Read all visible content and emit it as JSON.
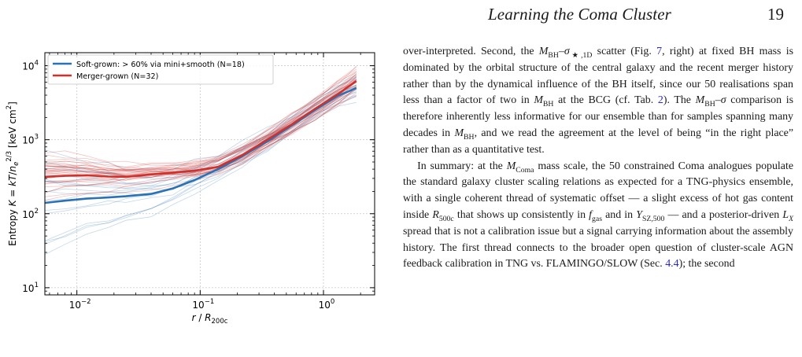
{
  "header": {
    "running_title": "Learning the Coma Cluster",
    "page_number": "19"
  },
  "figure": {
    "chart_data": {
      "type": "line",
      "xscale": "log",
      "yscale": "log",
      "xlim": [
        0.0055,
        2.6
      ],
      "ylim": [
        8,
        15000
      ],
      "xlabel": "r / R200c",
      "ylabel": "Entropy K = kT/n_e^(2/3) [keV cm^2]",
      "xticks": [
        "10^-2",
        "10^-1",
        "10^0"
      ],
      "yticks": [
        "10^1",
        "10^2",
        "10^3",
        "10^4"
      ],
      "legend_position": "top-left",
      "grid": true,
      "series": [
        {
          "name": "Soft-grown: > 60% via mini+smooth (N=18)",
          "color": "#2a72b5",
          "x": [
            0.0055,
            0.008,
            0.012,
            0.018,
            0.025,
            0.04,
            0.06,
            0.09,
            0.14,
            0.22,
            0.35,
            0.55,
            0.85,
            1.3,
            1.85
          ],
          "y": [
            140,
            150,
            160,
            166,
            172,
            185,
            220,
            285,
            400,
            600,
            950,
            1550,
            2500,
            3900,
            5000
          ]
        },
        {
          "name": "Merger-grown (N=32)",
          "color": "#d1302b",
          "x": [
            0.0055,
            0.008,
            0.012,
            0.018,
            0.025,
            0.04,
            0.06,
            0.09,
            0.14,
            0.22,
            0.35,
            0.55,
            0.85,
            1.3,
            1.85
          ],
          "y": [
            315,
            325,
            330,
            318,
            315,
            340,
            360,
            380,
            430,
            620,
            1000,
            1600,
            2600,
            4100,
            6200
          ]
        }
      ]
    }
  },
  "text": {
    "p1": [
      {
        "t": "over-interpreted. Second, the "
      },
      {
        "t": "M",
        "i": true
      },
      {
        "t": "BH",
        "sub": true
      },
      {
        "t": "–"
      },
      {
        "t": "σ",
        "i": true
      },
      {
        "t": "★,1D",
        "sub": true
      },
      {
        "t": " scatter (Fig. "
      },
      {
        "t": "7",
        "link": true
      },
      {
        "t": ", right) at fixed BH mass is dominated by the orbital structure of the central galaxy and the recent merger history rather than by the dynamical influence of the BH itself, since our 50 realisations span less than a factor of two in "
      },
      {
        "t": "M",
        "i": true
      },
      {
        "t": "BH",
        "sub": true
      },
      {
        "t": " at the BCG (cf. Tab. "
      },
      {
        "t": "2",
        "link": true
      },
      {
        "t": "). The "
      },
      {
        "t": "M",
        "i": true
      },
      {
        "t": "BH",
        "sub": true
      },
      {
        "t": "–"
      },
      {
        "t": "σ",
        "i": true
      },
      {
        "t": " comparison is therefore inherently less informative for our ensemble than for samples spanning many decades in "
      },
      {
        "t": "M",
        "i": true
      },
      {
        "t": "BH",
        "sub": true
      },
      {
        "t": ", and we read the agreement at the level of being “in the right place” rather than as a quantitative test."
      }
    ],
    "p2": [
      {
        "t": "In summary: at the "
      },
      {
        "t": "M",
        "i": true
      },
      {
        "t": "Coma",
        "sub": true
      },
      {
        "t": " mass scale, the 50 constrained Coma analogues populate the standard galaxy cluster scaling relations as expected for a TNG-physics ensemble, with a single coherent thread of systematic offset — a slight excess of hot gas content inside "
      },
      {
        "t": "R",
        "i": true
      },
      {
        "t": "500c",
        "sub": true
      },
      {
        "t": " that shows up consistently in "
      },
      {
        "t": "f",
        "i": true
      },
      {
        "t": "gas",
        "sub": true
      },
      {
        "t": " and in "
      },
      {
        "t": "Y",
        "i": true
      },
      {
        "t": "SZ,500",
        "sub": true
      },
      {
        "t": " — and a posterior-driven "
      },
      {
        "t": "L",
        "i": true
      },
      {
        "t": "X",
        "sub": true,
        "i": true
      },
      {
        "t": " spread that is not a calibration issue but a signal carrying information about the assembly history. The first thread connects to the broader open question of cluster-scale AGN feedback calibration in TNG vs. FLAMINGO/SLOW (Sec. "
      },
      {
        "t": "4.4",
        "link": true
      },
      {
        "t": "); the second"
      }
    ]
  }
}
